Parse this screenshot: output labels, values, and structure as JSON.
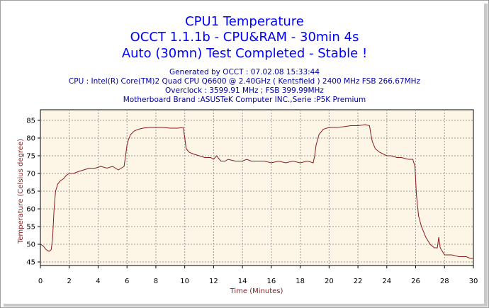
{
  "header": {
    "title_line1": "CPU1 Temperature",
    "title_line2": "OCCT 1.1.1b - CPU&RAM - 30min 4s",
    "title_line3": "Auto (30mn) Test Completed - Stable !",
    "generated": "Generated by OCCT : 07.02.08 15:33:44",
    "cpu": "CPU : Intel(R) Core(TM)2 Quad CPU Q6600 @ 2.40GHz ( Kentsfield ) 2400 MHz FSB 266.67MHz",
    "overclock": "Overclock : 3599.91 MHz ; FSB 399.99MHz",
    "motherboard": "Motherboard Brand :ASUSTeK Computer INC.,Serie :P5K Premium"
  },
  "colors": {
    "line": "#8b1a1a",
    "plot_bg": "#fdf6e6",
    "title": "#0000ff",
    "subtitle": "#0000a0",
    "axis_label": "#8b1a1a"
  },
  "chart_data": {
    "type": "line",
    "xlabel": "Time (Minutes)",
    "ylabel": "Temperature (Celsius degree)",
    "xlim": [
      0,
      30
    ],
    "ylim": [
      44,
      88
    ],
    "xticks": [
      0,
      2,
      4,
      6,
      8,
      10,
      12,
      14,
      16,
      18,
      20,
      22,
      24,
      26,
      28,
      30
    ],
    "yticks": [
      45,
      50,
      55,
      60,
      65,
      70,
      75,
      80,
      85
    ],
    "grid": true,
    "series": [
      {
        "x": [
          0,
          0.2,
          0.4,
          0.6,
          0.75,
          0.85,
          0.95,
          1.05,
          1.2,
          1.4,
          1.6,
          1.8,
          2.0,
          2.3,
          2.6,
          3.0,
          3.4,
          3.8,
          4.2,
          4.6,
          5.0,
          5.4,
          5.6,
          5.8,
          5.9,
          6.0,
          6.1,
          6.25,
          6.5,
          6.8,
          7.1,
          7.5,
          8.0,
          8.5,
          9.0,
          9.5,
          9.9,
          10.0,
          10.1,
          10.3,
          10.6,
          11.0,
          11.4,
          11.8,
          12.0,
          12.2,
          12.5,
          12.8,
          13.0,
          13.5,
          14.0,
          14.3,
          14.6,
          15.0,
          15.5,
          16.0,
          16.5,
          17.0,
          17.5,
          18.0,
          18.5,
          18.9,
          19.0,
          19.1,
          19.3,
          19.6,
          20.0,
          20.5,
          21.0,
          21.5,
          22.0,
          22.5,
          22.8,
          22.9,
          23.0,
          23.2,
          23.5,
          24.0,
          24.3,
          24.7,
          25.0,
          25.5,
          25.8,
          25.95,
          26.05,
          26.2,
          26.4,
          26.7,
          27.0,
          27.3,
          27.5,
          27.6,
          27.7,
          28.0,
          28.5,
          29.0,
          29.5,
          29.8,
          30.0
        ],
        "y": [
          50,
          49.5,
          48.5,
          48,
          48.5,
          52,
          60,
          65,
          67,
          68,
          68.5,
          69.5,
          70,
          70,
          70.5,
          71,
          71.5,
          71.5,
          72,
          71.5,
          72,
          71,
          71.5,
          72,
          75,
          78,
          79.5,
          81,
          82,
          82.5,
          82.8,
          83,
          83,
          83,
          82.8,
          82.8,
          83,
          80,
          77,
          76,
          75.5,
          75,
          74.5,
          74.5,
          74,
          75,
          73.5,
          73.5,
          74,
          73.5,
          73.5,
          74,
          73.5,
          73.5,
          73.5,
          73,
          73.5,
          73,
          73.5,
          73,
          73.5,
          73,
          75,
          78,
          81,
          82.5,
          83,
          83,
          83.2,
          83.5,
          83.5,
          83.8,
          83.5,
          81,
          79,
          77,
          76,
          75,
          75,
          74.5,
          74.5,
          74,
          74,
          72,
          64,
          58,
          55,
          52,
          50,
          49,
          49,
          52,
          49,
          47,
          47,
          46.5,
          46.5,
          46,
          46
        ]
      }
    ]
  }
}
